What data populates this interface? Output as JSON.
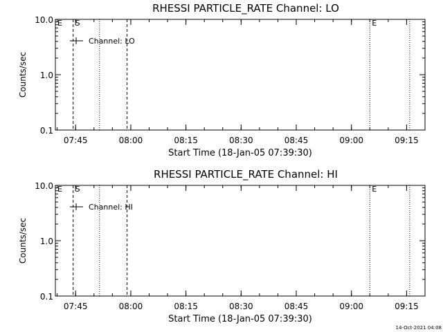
{
  "chart_data": [
    {
      "type": "line",
      "title": "RHESSI PARTICLE_RATE Channel: LO",
      "xlabel": "Start Time (18-Jan-05 07:39:30)",
      "ylabel": "Counts/sec",
      "yscale": "log",
      "ylim": [
        0.1,
        10.0
      ],
      "xlim": [
        "07:39:30",
        "09:20:00"
      ],
      "y_tick_labels": [
        "0.1",
        "1.0",
        "10.0"
      ],
      "x_tick_labels": [
        "07:45",
        "08:00",
        "08:15",
        "08:30",
        "08:45",
        "09:00",
        "09:15"
      ],
      "series": [
        {
          "name": "Channel: LO",
          "values": []
        }
      ],
      "legend": "top-left",
      "markers": [
        {
          "time": "07:39:30",
          "label": "E",
          "style": "dotted"
        },
        {
          "time": "07:44:20",
          "label": "S",
          "style": "dashed"
        },
        {
          "time": "07:51:30",
          "label": "",
          "style": "dotted"
        },
        {
          "time": "07:59:00",
          "label": "",
          "style": "dashed"
        },
        {
          "time": "09:05:00",
          "label": "E",
          "style": "dotted"
        },
        {
          "time": "09:15:50",
          "label": "",
          "style": "dotted"
        }
      ]
    },
    {
      "type": "line",
      "title": "RHESSI PARTICLE_RATE Channel: HI",
      "xlabel": "Start Time (18-Jan-05 07:39:30)",
      "ylabel": "Counts/sec",
      "yscale": "log",
      "ylim": [
        0.1,
        10.0
      ],
      "xlim": [
        "07:39:30",
        "09:20:00"
      ],
      "y_tick_labels": [
        "0.1",
        "1.0",
        "10.0"
      ],
      "x_tick_labels": [
        "07:45",
        "08:00",
        "08:15",
        "08:30",
        "08:45",
        "09:00",
        "09:15"
      ],
      "series": [
        {
          "name": "Channel: HI",
          "values": []
        }
      ],
      "legend": "top-left",
      "markers": [
        {
          "time": "07:39:30",
          "label": "E",
          "style": "dotted"
        },
        {
          "time": "07:44:20",
          "label": "S",
          "style": "dashed"
        },
        {
          "time": "07:51:30",
          "label": "",
          "style": "dotted"
        },
        {
          "time": "07:59:00",
          "label": "",
          "style": "dashed"
        },
        {
          "time": "09:05:00",
          "label": "E",
          "style": "dotted"
        },
        {
          "time": "09:15:50",
          "label": "",
          "style": "dotted"
        }
      ]
    }
  ],
  "footer": {
    "timestamp": "14-Oct-2021 04:08"
  }
}
